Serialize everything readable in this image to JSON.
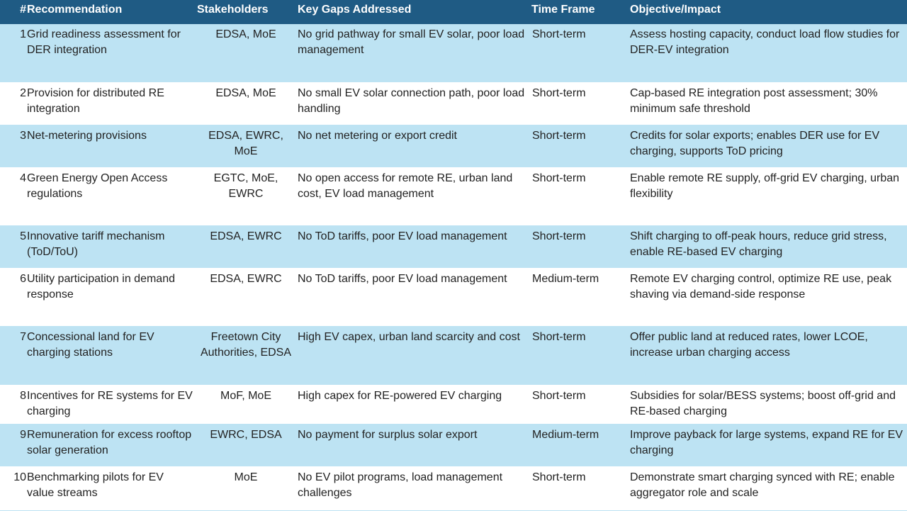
{
  "headers": {
    "num": "#",
    "recommendation": "Recommendation",
    "stakeholders": "Stakeholders",
    "gaps": "Key Gaps Addressed",
    "time": "Time Frame",
    "objective": "Objective/Impact"
  },
  "rows": [
    {
      "num": "1",
      "recommendation": "Grid readiness assessment for DER integration",
      "stakeholders": "EDSA, MoE",
      "gaps": "No grid pathway for small EV solar, poor load management",
      "time": "Short-term",
      "objective": "Assess hosting capacity, conduct load flow studies for DER-EV integration"
    },
    {
      "num": "2",
      "recommendation": "Provision for distributed RE integration",
      "stakeholders": "EDSA, MoE",
      "gaps": "No small EV solar connection path, poor load handling",
      "time": "Short-term",
      "objective": "Cap-based RE integration post assessment; 30% minimum safe threshold"
    },
    {
      "num": "3",
      "recommendation": "Net-metering provisions",
      "stakeholders": "EDSA, EWRC, MoE",
      "gaps": "No net metering or export credit",
      "time": "Short-term",
      "objective": "Credits for solar exports; enables DER use for EV charging, supports ToD pricing"
    },
    {
      "num": "4",
      "recommendation": "Green Energy Open Access regulations",
      "stakeholders": "EGTC, MoE, EWRC",
      "gaps": "No open access for remote RE, urban land cost, EV load management",
      "time": "Short-term",
      "objective": "Enable remote RE supply, off-grid EV charging, urban flexibility"
    },
    {
      "num": "5",
      "recommendation": "Innovative tariff mechanism (ToD/ToU)",
      "stakeholders": "EDSA, EWRC",
      "gaps": "No ToD tariffs, poor EV load management",
      "time": "Short-term",
      "objective": "Shift charging to off-peak hours, reduce grid stress, enable RE-based EV charging"
    },
    {
      "num": "6",
      "recommendation": "Utility participation in demand response",
      "stakeholders": "EDSA, EWRC",
      "gaps": "No ToD tariffs, poor EV load management",
      "time": "Medium-term",
      "objective": "Remote EV charging control, optimize RE use, peak shaving via demand-side response"
    },
    {
      "num": "7",
      "recommendation": "Concessional land for EV charging stations",
      "stakeholders": "Freetown City Authorities, EDSA",
      "gaps": "High EV capex, urban land scarcity and cost",
      "time": "Short-term",
      "objective": "Offer public land at reduced rates, lower LCOE, increase urban charging access"
    },
    {
      "num": "8",
      "recommendation": "Incentives for RE systems for EV charging",
      "stakeholders": "MoF, MoE",
      "gaps": "High capex for RE-powered EV charging",
      "time": "Short-term",
      "objective": "Subsidies for solar/BESS systems; boost off-grid and RE-based charging"
    },
    {
      "num": "9",
      "recommendation": "Remuneration for excess rooftop solar generation",
      "stakeholders": "EWRC, EDSA",
      "gaps": "No payment for surplus solar export",
      "time": "Medium-term",
      "objective": "Improve payback for large systems, expand RE for EV charging"
    },
    {
      "num": "10",
      "recommendation": "Benchmarking pilots for EV value streams",
      "stakeholders": "MoE",
      "gaps": "No EV pilot programs, load management challenges",
      "time": "Short-term",
      "objective": "Demonstrate smart charging synced with RE; enable aggregator role and scale"
    }
  ]
}
